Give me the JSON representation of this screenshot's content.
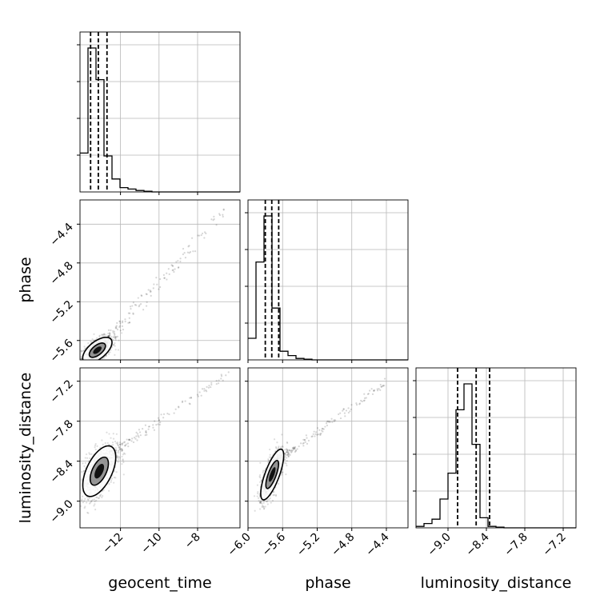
{
  "chart_data": {
    "type": "corner",
    "parameters": [
      "geocent_time",
      "phase",
      "luminosity_distance"
    ],
    "grid": true,
    "ranges": {
      "geocent_time": [
        -14.1,
        -5.8
      ],
      "phase": [
        -6.0,
        -4.15
      ],
      "luminosity_distance": [
        -9.5,
        -7.0
      ],
      "phase_as_y": [
        -5.8,
        -4.15
      ],
      "luminosity_distance_as_y": [
        -9.4,
        -7.0
      ]
    },
    "ticks": {
      "geocent_time": [
        -12,
        -10,
        -8
      ],
      "phase": [
        -6.0,
        -5.6,
        -5.2,
        -4.8,
        -4.4
      ],
      "luminosity_distance": [
        -9.0,
        -8.4,
        -7.8,
        -7.2
      ],
      "phase_as_y": [
        -5.6,
        -5.2,
        -4.8,
        -4.4
      ],
      "luminosity_distance_as_y": [
        -9.0,
        -8.4,
        -7.8,
        -7.2
      ]
    },
    "tick_labels": {
      "geocent_time": [
        "−12",
        "−10",
        "−8"
      ],
      "phase": [
        "−6.0",
        "−5.6",
        "−5.2",
        "−4.8",
        "−4.4"
      ],
      "luminosity_distance": [
        "−9.0",
        "−8.4",
        "−7.8",
        "−7.2"
      ],
      "phase_as_y": [
        "−5.6",
        "−5.2",
        "−4.8",
        "−4.4"
      ],
      "luminosity_distance_as_y": [
        "−9.0",
        "−8.4",
        "−7.8",
        "−7.2"
      ]
    },
    "histograms": {
      "geocent_time": {
        "bin_edges": [
          -14.1,
          -13.685,
          -13.27,
          -12.855,
          -12.44,
          -12.025,
          -11.61,
          -11.195,
          -10.78,
          -10.365,
          -9.95,
          -9.535,
          -9.12,
          -8.705,
          -8.29,
          -7.875,
          -7.46,
          -7.045,
          -6.63,
          -6.215,
          -5.8
        ],
        "counts": [
          0.27,
          1.0,
          0.78,
          0.25,
          0.09,
          0.03,
          0.02,
          0.01,
          0.005,
          0,
          0,
          0,
          0,
          0,
          0,
          0,
          0,
          0,
          0,
          0
        ],
        "quantiles": [
          -13.55,
          -13.15,
          -12.7
        ]
      },
      "phase": {
        "bin_edges": [
          -6.0,
          -5.9075,
          -5.815,
          -5.7225,
          -5.63,
          -5.5375,
          -5.445,
          -5.3525,
          -5.26,
          -5.1675,
          -5.075,
          -4.9825,
          -4.89,
          -4.7975,
          -4.705,
          -4.6125,
          -4.52,
          -4.4275,
          -4.335,
          -4.2425,
          -4.15
        ],
        "counts": [
          0.15,
          0.68,
          1.0,
          0.36,
          0.06,
          0.03,
          0.01,
          0.005,
          0,
          0,
          0,
          0,
          0,
          0,
          0,
          0,
          0,
          0,
          0,
          0
        ],
        "quantiles": [
          -5.8,
          -5.725,
          -5.645
        ]
      },
      "luminosity_distance": {
        "bin_edges": [
          -9.5,
          -9.375,
          -9.25,
          -9.125,
          -9.0,
          -8.875,
          -8.75,
          -8.625,
          -8.5,
          -8.375,
          -8.25,
          -8.125,
          -8.0,
          -7.875,
          -7.75,
          -7.625,
          -7.5,
          -7.375,
          -7.25,
          -7.125,
          -7.0
        ],
        "counts": [
          0.01,
          0.03,
          0.06,
          0.2,
          0.38,
          0.82,
          1.0,
          0.58,
          0.07,
          0.01,
          0.005,
          0,
          0,
          0,
          0,
          0,
          0,
          0,
          0,
          0
        ],
        "quantiles": [
          -8.85,
          -8.56,
          -8.35
        ]
      }
    },
    "joint_panels": [
      {
        "x": "geocent_time",
        "y": "phase",
        "mean": [
          -13.2,
          -5.7
        ],
        "sd": [
          0.4,
          0.07
        ],
        "correlation": 0.6,
        "tail": {
          "x": [
            -12.5,
            -6.5
          ],
          "y": [
            -5.55,
            -4.25
          ]
        },
        "contour_levels": [
          1,
          2
        ]
      },
      {
        "x": "geocent_time",
        "y": "luminosity_distance",
        "mean": [
          -13.1,
          -8.55
        ],
        "sd": [
          0.45,
          0.2
        ],
        "correlation": 0.55,
        "tail": {
          "x": [
            -12.5,
            -6.5
          ],
          "y": [
            -8.3,
            -7.1
          ]
        },
        "contour_levels": [
          1,
          2
        ]
      },
      {
        "x": "phase",
        "y": "luminosity_distance",
        "mean": [
          -5.72,
          -8.6
        ],
        "sd": [
          0.07,
          0.2
        ],
        "correlation": 0.75,
        "tail": {
          "x": [
            -5.55,
            -4.4
          ],
          "y": [
            -8.3,
            -7.2
          ]
        },
        "contour_levels": [
          1,
          2
        ]
      }
    ]
  }
}
